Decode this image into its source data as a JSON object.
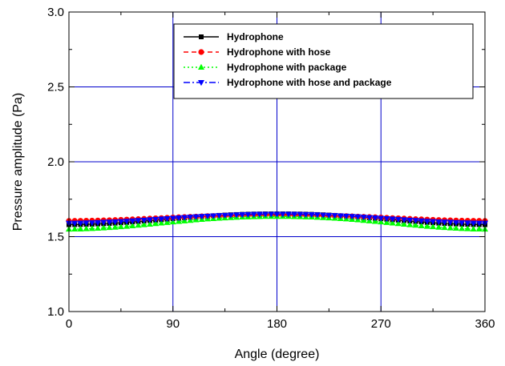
{
  "chart_data": {
    "type": "line",
    "title": "",
    "xlabel": "Angle (degree)",
    "ylabel": "Pressure amplitude (Pa)",
    "xlim": [
      0,
      360
    ],
    "ylim": [
      1.0,
      3.0
    ],
    "xticks": [
      0,
      90,
      180,
      270,
      360
    ],
    "xtick_labels": [
      "0",
      "90",
      "180",
      "270",
      "360"
    ],
    "yticks": [
      1.0,
      1.5,
      2.0,
      2.5,
      3.0
    ],
    "ytick_labels": [
      "1.0",
      "1.5",
      "2.0",
      "2.5",
      "3.0"
    ],
    "grid": true,
    "legend_position": "top-right",
    "x": [
      0,
      10,
      20,
      30,
      40,
      50,
      60,
      70,
      80,
      90,
      100,
      110,
      120,
      130,
      140,
      150,
      160,
      170,
      180,
      190,
      200,
      210,
      220,
      230,
      240,
      250,
      260,
      270,
      280,
      290,
      300,
      310,
      320,
      330,
      340,
      350,
      360
    ],
    "series": [
      {
        "name": "Hydrophone",
        "color": "#000000",
        "marker": "square",
        "dash": "solid",
        "values": [
          1.58,
          1.581,
          1.583,
          1.586,
          1.59,
          1.595,
          1.601,
          1.607,
          1.613,
          1.62,
          1.626,
          1.632,
          1.637,
          1.642,
          1.646,
          1.649,
          1.651,
          1.652,
          1.652,
          1.652,
          1.651,
          1.649,
          1.646,
          1.642,
          1.637,
          1.632,
          1.626,
          1.62,
          1.613,
          1.607,
          1.601,
          1.595,
          1.59,
          1.586,
          1.583,
          1.581,
          1.58
        ]
      },
      {
        "name": "Hydrophone with hose",
        "color": "#ff0000",
        "marker": "circle",
        "dash": "dash",
        "values": [
          1.605,
          1.606,
          1.607,
          1.609,
          1.611,
          1.614,
          1.617,
          1.621,
          1.624,
          1.628,
          1.631,
          1.634,
          1.637,
          1.639,
          1.641,
          1.643,
          1.644,
          1.645,
          1.645,
          1.645,
          1.644,
          1.643,
          1.641,
          1.639,
          1.637,
          1.634,
          1.631,
          1.628,
          1.624,
          1.621,
          1.617,
          1.614,
          1.611,
          1.609,
          1.607,
          1.606,
          1.605
        ]
      },
      {
        "name": "Hydrophone with package",
        "color": "#00ff00",
        "marker": "triangle-up",
        "dash": "dot",
        "values": [
          1.55,
          1.551,
          1.554,
          1.558,
          1.563,
          1.569,
          1.576,
          1.583,
          1.591,
          1.598,
          1.605,
          1.612,
          1.618,
          1.623,
          1.627,
          1.631,
          1.633,
          1.635,
          1.635,
          1.635,
          1.633,
          1.631,
          1.627,
          1.623,
          1.618,
          1.612,
          1.605,
          1.598,
          1.591,
          1.583,
          1.576,
          1.569,
          1.563,
          1.558,
          1.554,
          1.551,
          1.55
        ]
      },
      {
        "name": "Hydrophone with hose and package",
        "color": "#0000ff",
        "marker": "triangle-down",
        "dash": "dashdot",
        "values": [
          1.59,
          1.591,
          1.593,
          1.596,
          1.599,
          1.603,
          1.608,
          1.613,
          1.618,
          1.623,
          1.628,
          1.633,
          1.637,
          1.641,
          1.644,
          1.647,
          1.649,
          1.65,
          1.65,
          1.65,
          1.649,
          1.647,
          1.644,
          1.641,
          1.637,
          1.633,
          1.628,
          1.623,
          1.618,
          1.613,
          1.608,
          1.603,
          1.599,
          1.596,
          1.593,
          1.591,
          1.59
        ]
      }
    ]
  }
}
